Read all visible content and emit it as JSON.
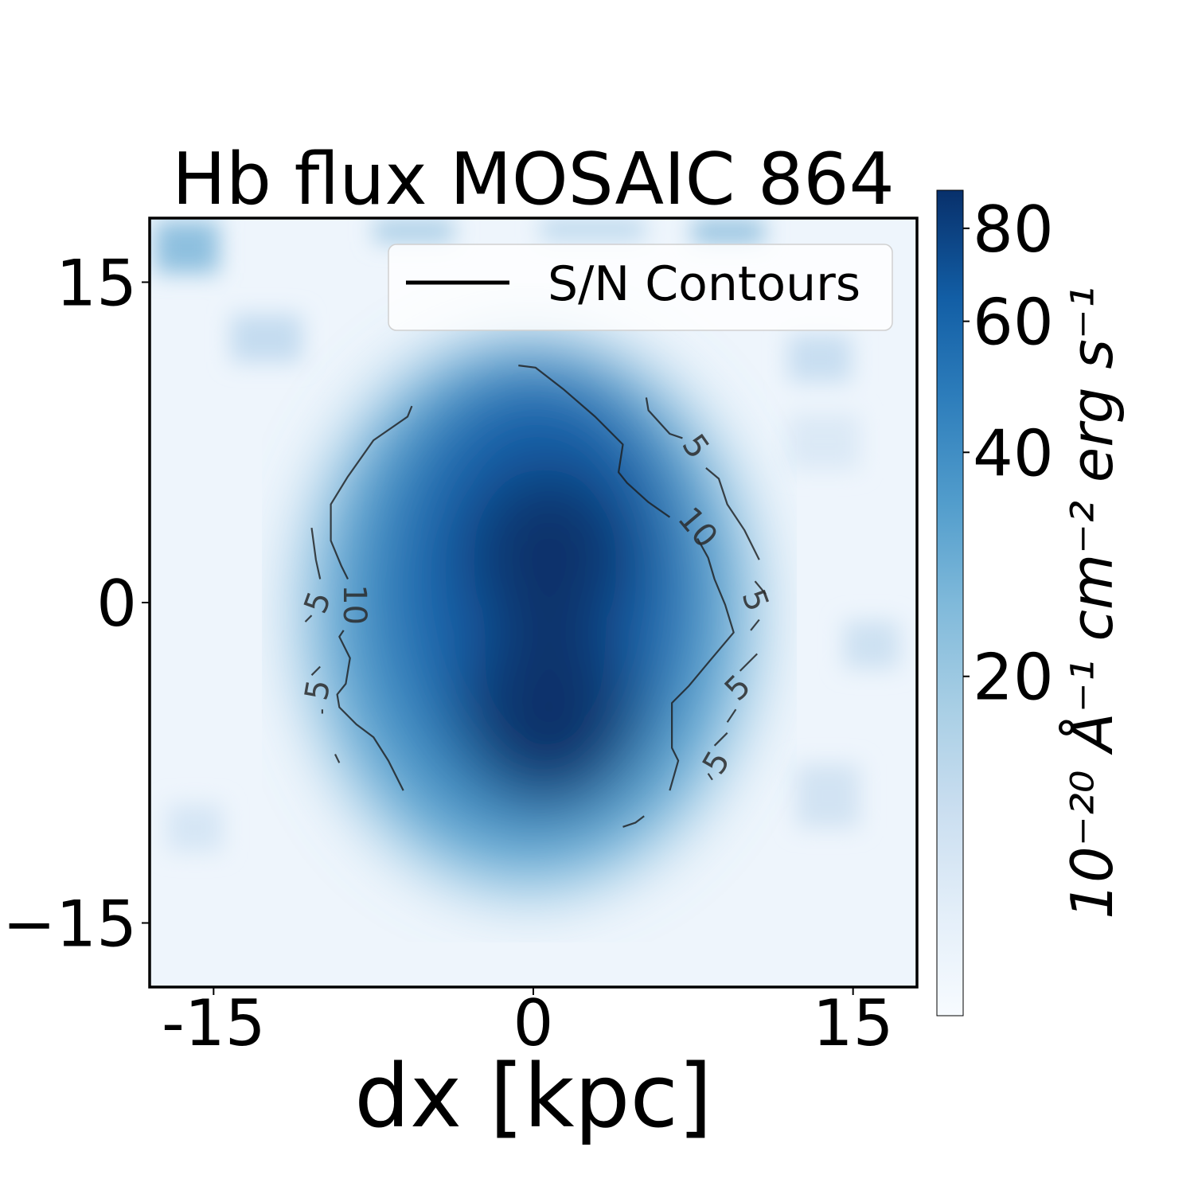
{
  "chart_data": {
    "type": "heatmap",
    "title": "Hb flux MOSAIC 864",
    "xlabel": "dx [kpc]",
    "ylabel": "",
    "xlim": [
      -18,
      18
    ],
    "ylim": [
      -18,
      18
    ],
    "x_ticks": [
      {
        "value": -15,
        "label": "-15"
      },
      {
        "value": 0,
        "label": "0"
      },
      {
        "value": 15,
        "label": "15"
      }
    ],
    "y_ticks": [
      {
        "value": 15,
        "label": "15"
      },
      {
        "value": 0,
        "label": "0"
      },
      {
        "value": -15,
        "label": "−15"
      }
    ],
    "colormap": "Blues",
    "colorbar": {
      "label": "10⁻²⁰ Å⁻¹ cm⁻² erg s⁻¹",
      "scale": "log",
      "range": [
        7,
        90
      ],
      "ticks": [
        {
          "value": 20,
          "label": "20"
        },
        {
          "value": 40,
          "label": "40"
        },
        {
          "value": 60,
          "label": "60"
        },
        {
          "value": 80,
          "label": "80"
        }
      ]
    },
    "emission_peaks": [
      {
        "x": 1.0,
        "y": 1.8,
        "value": 88
      },
      {
        "x": 1.0,
        "y": -5.2,
        "value": 90
      }
    ],
    "legend": {
      "entries": [
        "S/N Contours"
      ],
      "placement": "top-right"
    },
    "contours": [
      {
        "level": 10,
        "points": [
          [
            -5.7,
            9.2
          ],
          [
            -5.9,
            8.7
          ],
          [
            -7.5,
            7.6
          ],
          [
            -8.7,
            5.9
          ],
          [
            -9.5,
            4.6
          ],
          [
            -9.5,
            2.9
          ],
          [
            -9.0,
            1.7
          ],
          [
            -8.7,
            1.1
          ]
        ]
      },
      {
        "level": 10,
        "points": [
          [
            -8.9,
            -1.3
          ],
          [
            -9.1,
            -1.6
          ],
          [
            -8.6,
            -2.6
          ],
          [
            -8.8,
            -3.8
          ],
          [
            -9.2,
            -4.3
          ],
          [
            -9.1,
            -4.9
          ],
          [
            -8.3,
            -5.7
          ],
          [
            -7.5,
            -6.3
          ],
          [
            -6.8,
            -7.4
          ],
          [
            -6.1,
            -8.8
          ]
        ]
      },
      {
        "level": 10,
        "points": [
          [
            -0.7,
            11.1
          ],
          [
            0.1,
            11.0
          ],
          [
            1.4,
            10.0
          ],
          [
            2.9,
            8.7
          ],
          [
            4.2,
            7.4
          ],
          [
            4.0,
            6.1
          ],
          [
            4.4,
            5.6
          ],
          [
            5.4,
            4.7
          ],
          [
            6.4,
            4.0
          ]
        ]
      },
      {
        "level": 10,
        "points": [
          [
            7.7,
            3.0
          ],
          [
            8.2,
            2.1
          ],
          [
            8.5,
            1.1
          ],
          [
            9.0,
            -0.1
          ],
          [
            9.4,
            -1.4
          ],
          [
            8.3,
            -2.7
          ],
          [
            7.3,
            -3.9
          ],
          [
            6.5,
            -4.7
          ],
          [
            6.5,
            -6.8
          ],
          [
            6.8,
            -7.4
          ],
          [
            6.4,
            -8.8
          ]
        ]
      },
      {
        "level": 5,
        "points": [
          [
            5.3,
            9.6
          ],
          [
            5.4,
            9.0
          ],
          [
            6.4,
            7.9
          ],
          [
            7.0,
            7.7
          ]
        ]
      },
      {
        "level": 5,
        "points": [
          [
            8.1,
            6.3
          ],
          [
            8.7,
            5.8
          ],
          [
            9.1,
            4.6
          ],
          [
            9.9,
            3.4
          ],
          [
            10.6,
            2.0
          ]
        ]
      },
      {
        "level": 5,
        "points": [
          [
            10.4,
            1.0
          ],
          [
            10.9,
            0.4
          ]
        ]
      },
      {
        "level": 5,
        "points": [
          [
            10.6,
            -0.8
          ],
          [
            10.2,
            -1.3
          ]
        ]
      },
      {
        "level": 5,
        "points": [
          [
            10.5,
            -2.4
          ],
          [
            9.7,
            -3.2
          ]
        ]
      },
      {
        "level": 5,
        "points": [
          [
            9.5,
            -5.0
          ],
          [
            9.1,
            -5.6
          ]
        ]
      },
      {
        "level": 5,
        "points": [
          [
            9.1,
            -6.1
          ],
          [
            8.5,
            -6.7
          ]
        ]
      },
      {
        "level": 5,
        "points": [
          [
            8.4,
            -8.3
          ],
          [
            8.2,
            -8.0
          ]
        ]
      },
      {
        "level": 5,
        "points": [
          [
            4.2,
            -10.5
          ],
          [
            4.8,
            -10.3
          ],
          [
            5.2,
            -10.0
          ]
        ]
      },
      {
        "level": 5,
        "points": [
          [
            -10.4,
            3.5
          ],
          [
            -10.2,
            2.0
          ],
          [
            -10.0,
            1.1
          ]
        ]
      },
      {
        "level": 5,
        "points": [
          [
            -10.7,
            -0.9
          ],
          [
            -10.4,
            -0.6
          ]
        ]
      },
      {
        "level": 5,
        "points": [
          [
            -10.4,
            -3.4
          ],
          [
            -10.0,
            -3.0
          ]
        ]
      },
      {
        "level": 5,
        "points": [
          [
            -9.9,
            -5.2
          ],
          [
            -9.9,
            -5.0
          ]
        ]
      },
      {
        "level": 5,
        "points": [
          [
            -9.3,
            -7.1
          ],
          [
            -9.1,
            -7.5
          ]
        ]
      }
    ],
    "contour_labels": [
      {
        "text": "5",
        "x": 7.6,
        "y": 7.3,
        "angle": 55
      },
      {
        "text": "10",
        "x": 7.7,
        "y": 3.5,
        "angle": 50
      },
      {
        "text": "5",
        "x": 10.4,
        "y": 0.1,
        "angle": 70
      },
      {
        "text": "5",
        "x": 9.6,
        "y": -4.0,
        "angle": -45
      },
      {
        "text": "5",
        "x": 8.6,
        "y": -7.5,
        "angle": -60
      },
      {
        "text": "5",
        "x": -10.1,
        "y": 0.0,
        "angle": -70
      },
      {
        "text": "10",
        "x": -8.4,
        "y": -0.1,
        "angle": 90
      },
      {
        "text": "5",
        "x": -10.1,
        "y": -4.1,
        "angle": -80
      }
    ]
  }
}
